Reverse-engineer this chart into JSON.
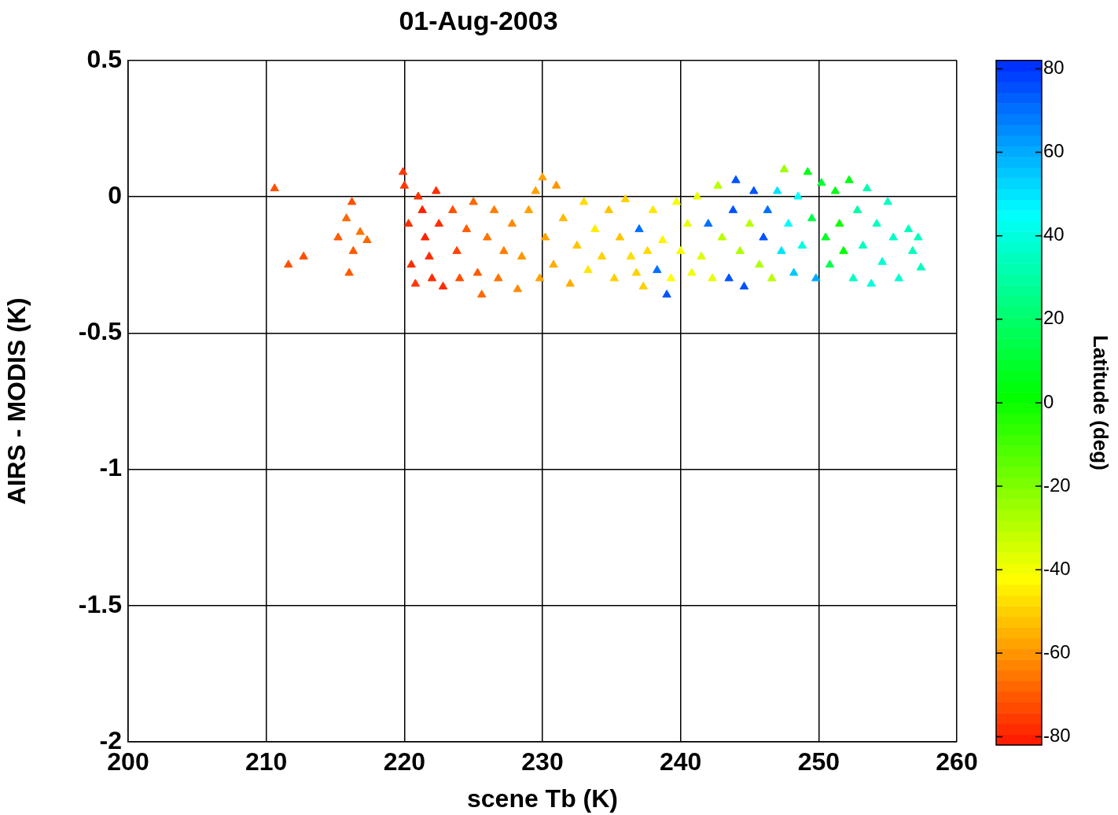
{
  "chart_data": {
    "type": "scatter",
    "title": "01-Aug-2003",
    "xlabel": "scene Tb (K)",
    "ylabel": "AIRS - MODIS (K)",
    "clabel": "Latitude (deg)",
    "x": [
      210.6,
      211.6,
      212.7,
      215.2,
      215.8,
      216.0,
      216.2,
      216.3,
      216.8,
      217.3,
      219.9,
      220.0,
      220.3,
      220.5,
      220.8,
      221.0,
      221.3,
      221.5,
      221.8,
      222.0,
      222.3,
      222.5,
      222.8,
      223.5,
      223.8,
      224.0,
      224.5,
      225.0,
      225.3,
      225.6,
      226.0,
      226.5,
      226.8,
      227.2,
      227.8,
      228.2,
      228.5,
      229.0,
      229.5,
      229.8,
      230.0,
      230.2,
      230.8,
      231.0,
      231.5,
      232.0,
      232.5,
      233.0,
      233.3,
      233.8,
      234.3,
      234.8,
      235.2,
      235.6,
      236.0,
      236.4,
      236.8,
      237.0,
      237.3,
      237.6,
      238.0,
      238.3,
      238.7,
      239.0,
      239.3,
      239.7,
      240.0,
      240.5,
      240.8,
      241.2,
      241.5,
      242.0,
      242.3,
      242.7,
      243.0,
      243.5,
      243.8,
      244.0,
      244.3,
      244.6,
      245.0,
      245.3,
      245.7,
      246.0,
      246.3,
      246.6,
      247.0,
      247.3,
      247.5,
      247.8,
      248.2,
      248.5,
      248.8,
      249.2,
      249.5,
      249.8,
      250.2,
      250.5,
      250.8,
      251.2,
      251.5,
      251.8,
      252.2,
      252.5,
      252.8,
      253.2,
      253.5,
      253.8,
      254.2,
      254.6,
      255.0,
      255.4,
      255.8,
      256.5,
      256.8,
      257.2,
      257.4
    ],
    "values": [
      0.03,
      -0.25,
      -0.22,
      -0.15,
      -0.08,
      -0.28,
      -0.02,
      -0.2,
      -0.13,
      -0.16,
      0.09,
      0.04,
      -0.1,
      -0.25,
      -0.32,
      0.0,
      -0.05,
      -0.15,
      -0.22,
      -0.3,
      0.02,
      -0.1,
      -0.33,
      -0.05,
      -0.2,
      -0.3,
      -0.12,
      -0.02,
      -0.28,
      -0.36,
      -0.15,
      -0.05,
      -0.3,
      -0.2,
      -0.1,
      -0.34,
      -0.22,
      -0.05,
      0.02,
      -0.3,
      0.07,
      -0.15,
      -0.25,
      0.04,
      -0.08,
      -0.32,
      -0.18,
      -0.02,
      -0.27,
      -0.12,
      -0.22,
      -0.05,
      -0.3,
      -0.15,
      -0.01,
      -0.22,
      -0.28,
      -0.12,
      -0.33,
      -0.2,
      -0.05,
      -0.27,
      -0.16,
      -0.36,
      -0.3,
      -0.02,
      -0.2,
      -0.1,
      -0.28,
      0.0,
      -0.22,
      -0.1,
      -0.3,
      0.04,
      -0.15,
      -0.3,
      -0.05,
      0.06,
      -0.2,
      -0.33,
      -0.1,
      0.02,
      -0.25,
      -0.15,
      -0.05,
      -0.3,
      0.02,
      -0.2,
      0.1,
      -0.1,
      -0.28,
      0.0,
      -0.18,
      0.09,
      -0.08,
      -0.3,
      0.05,
      -0.15,
      -0.25,
      0.02,
      -0.1,
      -0.2,
      0.06,
      -0.3,
      -0.05,
      -0.18,
      0.03,
      -0.32,
      -0.1,
      -0.24,
      -0.02,
      -0.15,
      -0.3,
      -0.12,
      -0.2,
      -0.15,
      -0.26
    ],
    "cvalues": [
      -72,
      -72,
      -72,
      -70,
      -68,
      -70,
      -72,
      -70,
      -66,
      -68,
      -76,
      -76,
      -78,
      -78,
      -76,
      -78,
      -80,
      -80,
      -78,
      -78,
      -78,
      -78,
      -78,
      -72,
      -74,
      -72,
      -70,
      -68,
      -70,
      -68,
      -66,
      -64,
      -66,
      -64,
      -62,
      -62,
      -60,
      -58,
      -58,
      -58,
      -58,
      -58,
      -56,
      -60,
      -54,
      -56,
      -52,
      -48,
      -46,
      -45,
      -50,
      -52,
      -50,
      -52,
      -50,
      -48,
      -50,
      70,
      -50,
      -48,
      -46,
      70,
      -44,
      75,
      -42,
      -40,
      -40,
      -38,
      -40,
      -38,
      -36,
      70,
      -38,
      -30,
      -30,
      75,
      75,
      75,
      -28,
      75,
      -30,
      75,
      -28,
      75,
      70,
      -30,
      50,
      50,
      -25,
      45,
      55,
      45,
      40,
      5,
      15,
      60,
      10,
      8,
      15,
      5,
      0,
      2,
      5,
      35,
      30,
      35,
      32,
      40,
      35,
      38,
      35,
      36,
      38,
      34,
      34,
      34,
      34
    ],
    "xlim": [
      200,
      260
    ],
    "ylim": [
      -2,
      0.5
    ],
    "xticks": [
      200,
      210,
      220,
      230,
      240,
      250,
      260
    ],
    "yticks": [
      -2,
      -1.5,
      -1,
      -0.5,
      0,
      0.5
    ],
    "clim": [
      -82,
      82
    ],
    "cticks": [
      -80,
      -60,
      -40,
      -20,
      0,
      20,
      40,
      60,
      80
    ],
    "grid": true,
    "marker": "triangle"
  }
}
